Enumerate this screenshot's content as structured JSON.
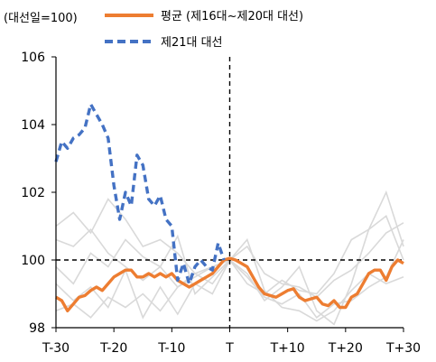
{
  "chart_data": {
    "type": "line",
    "unit_label": "(대선일=100)",
    "x_tick_labels": [
      "T-30",
      "T-20",
      "T-10",
      "T",
      "T+10",
      "T+20",
      "T+30"
    ],
    "x_tick_values": [
      -30,
      -20,
      -10,
      0,
      10,
      20,
      30
    ],
    "y_tick_labels": [
      "106",
      "104",
      "102",
      "100",
      "98"
    ],
    "y_tick_values": [
      106,
      104,
      102,
      100,
      98
    ],
    "xlim": [
      -30,
      30
    ],
    "ylim": [
      98,
      106
    ],
    "reference_y": 100,
    "reference_x": 0,
    "legend_position": "top",
    "series": [
      {
        "name": "평균 (제16대~제20대 대선)",
        "color": "#ED7D31",
        "style": "solid",
        "x": [
          -30,
          -29,
          -28,
          -27,
          -26,
          -25,
          -24,
          -23,
          -22,
          -21,
          -20,
          -19,
          -18,
          -17,
          -16,
          -15,
          -14,
          -13,
          -12,
          -11,
          -10,
          -9,
          -8,
          -7,
          -6,
          -5,
          -4,
          -3,
          -2,
          -1,
          0,
          1,
          2,
          3,
          4,
          5,
          6,
          7,
          8,
          9,
          10,
          11,
          12,
          13,
          14,
          15,
          16,
          17,
          18,
          19,
          20,
          21,
          22,
          23,
          24,
          25,
          26,
          27,
          28,
          29,
          30
        ],
        "y": [
          98.9,
          98.8,
          98.5,
          98.7,
          98.9,
          98.95,
          99.1,
          99.2,
          99.1,
          99.3,
          99.5,
          99.6,
          99.7,
          99.7,
          99.5,
          99.5,
          99.6,
          99.5,
          99.6,
          99.5,
          99.6,
          99.4,
          99.3,
          99.2,
          99.3,
          99.4,
          99.5,
          99.6,
          99.8,
          100.0,
          100.05,
          100.0,
          99.9,
          99.8,
          99.5,
          99.2,
          99.0,
          98.95,
          98.9,
          99.0,
          99.1,
          99.15,
          98.9,
          98.8,
          98.85,
          98.9,
          98.7,
          98.65,
          98.8,
          98.6,
          98.6,
          98.9,
          99.0,
          99.3,
          99.6,
          99.7,
          99.7,
          99.4,
          99.8,
          100.0,
          99.9
        ]
      },
      {
        "name": "제21대 대선",
        "color": "#4472C4",
        "style": "dashed",
        "x": [
          -30,
          -29,
          -28,
          -27,
          -26,
          -25,
          -24,
          -23,
          -22,
          -21,
          -20,
          -19,
          -18,
          -17,
          -16,
          -15,
          -14,
          -13,
          -12,
          -11,
          -10,
          -9,
          -8,
          -7,
          -6,
          -5,
          -4,
          -3,
          -2,
          -1
        ],
        "y": [
          102.9,
          103.5,
          103.3,
          103.6,
          103.7,
          103.9,
          104.6,
          104.3,
          104.0,
          103.6,
          102.2,
          101.2,
          102.0,
          101.6,
          103.1,
          102.8,
          101.8,
          101.6,
          101.9,
          101.2,
          101.0,
          99.4,
          99.9,
          99.3,
          99.8,
          100.0,
          99.8,
          99.7,
          100.5,
          100.0
        ]
      }
    ],
    "background_series_color": "#D9D9D9",
    "background_series": [
      {
        "x": [
          -30,
          -27,
          -24,
          -21,
          -18,
          -15,
          -12,
          -9,
          -6,
          -3,
          0,
          3,
          6,
          9,
          12,
          15,
          18,
          21,
          24,
          27,
          30
        ],
        "y": [
          101.0,
          101.4,
          100.8,
          101.8,
          101.2,
          100.4,
          100.6,
          100.2,
          99.6,
          99.8,
          100.0,
          99.3,
          99.0,
          99.4,
          99.1,
          99.0,
          99.6,
          100.6,
          100.9,
          102.0,
          100.4
        ]
      },
      {
        "x": [
          -30,
          -27,
          -24,
          -21,
          -18,
          -15,
          -12,
          -9,
          -6,
          -3,
          0,
          3,
          6,
          9,
          12,
          15,
          18,
          21,
          24,
          27,
          30
        ],
        "y": [
          99.3,
          98.8,
          99.2,
          98.6,
          99.7,
          98.3,
          99.2,
          98.4,
          99.3,
          99.0,
          100.0,
          100.6,
          99.1,
          98.6,
          98.5,
          98.2,
          98.5,
          99.1,
          99.6,
          99.3,
          99.5
        ]
      },
      {
        "x": [
          -30,
          -27,
          -24,
          -21,
          -18,
          -15,
          -12,
          -9,
          -6,
          -3,
          0,
          3,
          6,
          9,
          12,
          15,
          18,
          21,
          24,
          27,
          30
        ],
        "y": [
          99.8,
          99.3,
          100.2,
          99.8,
          100.6,
          100.1,
          99.8,
          100.7,
          99.0,
          99.5,
          100.0,
          99.6,
          98.8,
          99.2,
          99.8,
          98.5,
          98.1,
          99.3,
          100.9,
          101.3,
          100.0
        ]
      },
      {
        "x": [
          -30,
          -27,
          -24,
          -21,
          -18,
          -15,
          -12,
          -9,
          -6,
          -3,
          0,
          3,
          6,
          9,
          12,
          15,
          18,
          21,
          24,
          27,
          30
        ],
        "y": [
          98.5,
          98.7,
          98.3,
          98.9,
          98.6,
          99.0,
          98.5,
          99.2,
          99.6,
          99.3,
          100.0,
          99.5,
          98.9,
          98.7,
          99.0,
          98.3,
          98.7,
          98.8,
          99.2,
          99.5,
          100.6
        ]
      },
      {
        "x": [
          -30,
          -27,
          -24,
          -21,
          -18,
          -15,
          -12,
          -9,
          -6,
          -3,
          0,
          3,
          6,
          9,
          12,
          15,
          18,
          21,
          24,
          27,
          30
        ],
        "y": [
          100.6,
          100.4,
          100.9,
          100.2,
          99.8,
          99.4,
          99.8,
          99.2,
          99.5,
          99.8,
          100.0,
          100.4,
          99.6,
          99.3,
          99.2,
          98.9,
          99.4,
          99.7,
          100.2,
          100.8,
          101.1
        ]
      }
    ]
  }
}
